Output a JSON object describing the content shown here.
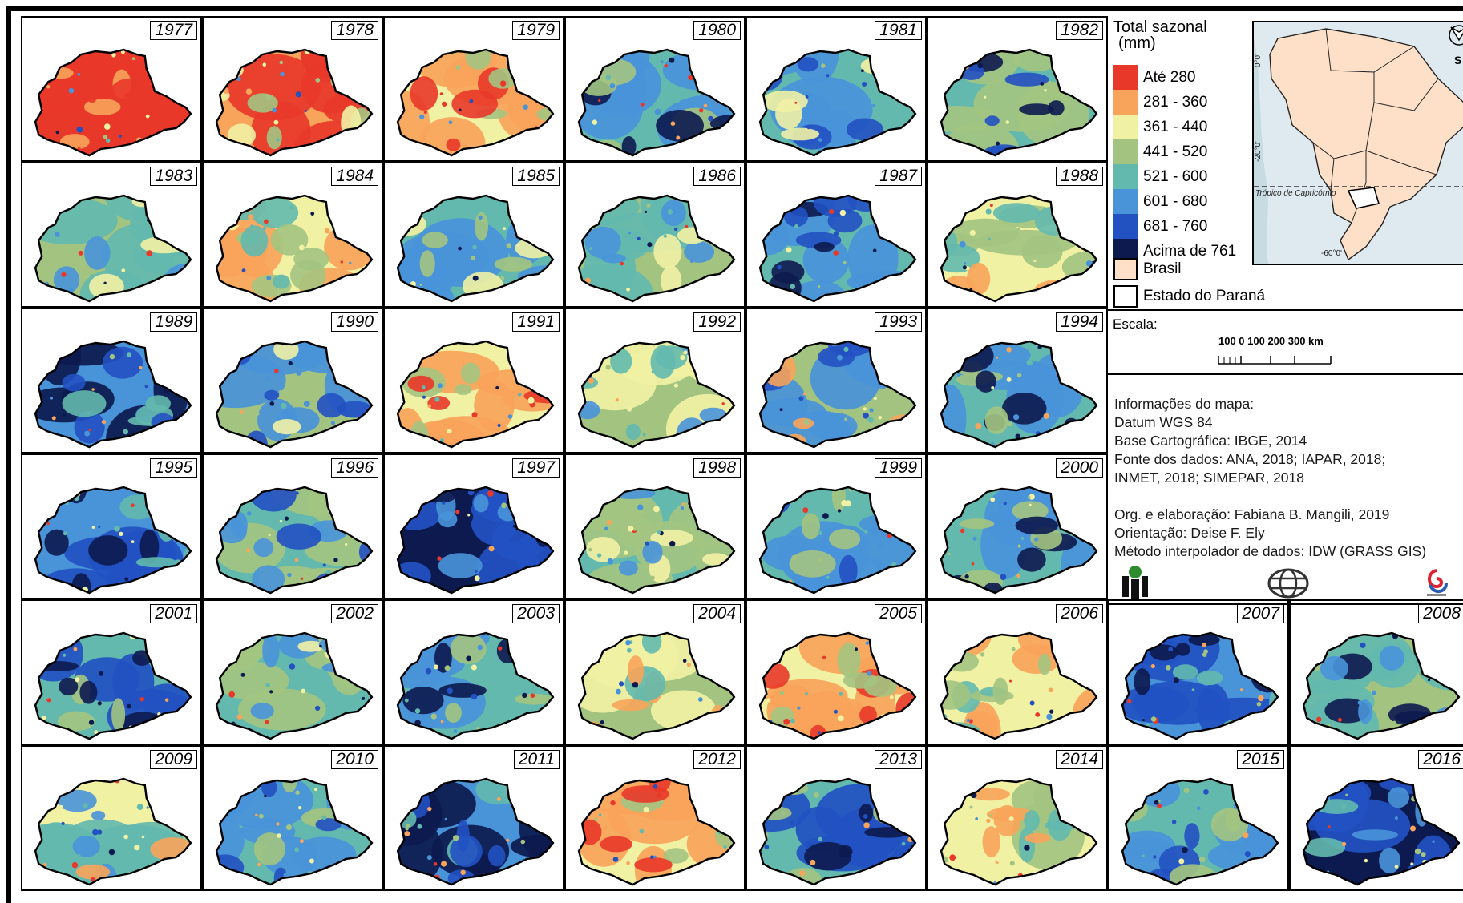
{
  "years": [
    "1977",
    "1978",
    "1979",
    "1980",
    "1981",
    "1982",
    "1983",
    "1984",
    "1985",
    "1986",
    "1987",
    "1988",
    "1989",
    "1990",
    "1991",
    "1992",
    "1993",
    "1994",
    "1995",
    "1996",
    "1997",
    "1998",
    "1999",
    "2000",
    "2001",
    "2002",
    "2003",
    "2004",
    "2005",
    "2006",
    "2007",
    "2008",
    "2009",
    "2010",
    "2011",
    "2012",
    "2013",
    "2014",
    "2015",
    "2016"
  ],
  "maps": [
    {
      "year": "1977",
      "levels": {
        "base": 0,
        "mid": 0,
        "spots": [
          1,
          0
        ]
      }
    },
    {
      "year": "1978",
      "levels": {
        "base": 1,
        "mid": 0,
        "spots": [
          2,
          3
        ]
      }
    },
    {
      "year": "1979",
      "levels": {
        "base": 2,
        "mid": 1,
        "spots": [
          0,
          3
        ]
      }
    },
    {
      "year": "1980",
      "levels": {
        "base": 4,
        "mid": 5,
        "spots": [
          3,
          7
        ]
      }
    },
    {
      "year": "1981",
      "levels": {
        "base": 4,
        "mid": 5,
        "spots": [
          2,
          6
        ]
      }
    },
    {
      "year": "1982",
      "levels": {
        "base": 4,
        "mid": 3,
        "spots": [
          6,
          7
        ]
      }
    },
    {
      "year": "1983",
      "levels": {
        "base": 3,
        "mid": 4,
        "spots": [
          5,
          2
        ]
      }
    },
    {
      "year": "1984",
      "levels": {
        "base": 2,
        "mid": 1,
        "spots": [
          3,
          4
        ]
      }
    },
    {
      "year": "1985",
      "levels": {
        "base": 4,
        "mid": 5,
        "spots": [
          3,
          2
        ]
      }
    },
    {
      "year": "1986",
      "levels": {
        "base": 3,
        "mid": 4,
        "spots": [
          5,
          2
        ]
      }
    },
    {
      "year": "1987",
      "levels": {
        "base": 4,
        "mid": 5,
        "spots": [
          6,
          7
        ]
      }
    },
    {
      "year": "1988",
      "levels": {
        "base": 2,
        "mid": 3,
        "spots": [
          1,
          4
        ]
      }
    },
    {
      "year": "1989",
      "levels": {
        "base": 5,
        "mid": 7,
        "spots": [
          6,
          4
        ]
      }
    },
    {
      "year": "1990",
      "levels": {
        "base": 3,
        "mid": 5,
        "spots": [
          6,
          2
        ]
      }
    },
    {
      "year": "1991",
      "levels": {
        "base": 2,
        "mid": 1,
        "spots": [
          0,
          3
        ]
      }
    },
    {
      "year": "1992",
      "levels": {
        "base": 3,
        "mid": 2,
        "spots": [
          4,
          5
        ]
      }
    },
    {
      "year": "1993",
      "levels": {
        "base": 3,
        "mid": 5,
        "spots": [
          1,
          6
        ]
      }
    },
    {
      "year": "1994",
      "levels": {
        "base": 4,
        "mid": 5,
        "spots": [
          7,
          3
        ]
      }
    },
    {
      "year": "1995",
      "levels": {
        "base": 5,
        "mid": 6,
        "spots": [
          7,
          4
        ]
      }
    },
    {
      "year": "1996",
      "levels": {
        "base": 4,
        "mid": 3,
        "spots": [
          5,
          6
        ]
      }
    },
    {
      "year": "1997",
      "levels": {
        "base": 7,
        "mid": 6,
        "spots": [
          5,
          7
        ]
      }
    },
    {
      "year": "1998",
      "levels": {
        "base": 4,
        "mid": 3,
        "spots": [
          5,
          2
        ]
      }
    },
    {
      "year": "1999",
      "levels": {
        "base": 4,
        "mid": 5,
        "spots": [
          3,
          6
        ]
      }
    },
    {
      "year": "2000",
      "levels": {
        "base": 4,
        "mid": 5,
        "spots": [
          7,
          3
        ]
      }
    },
    {
      "year": "2001",
      "levels": {
        "base": 4,
        "mid": 6,
        "spots": [
          7,
          3
        ]
      }
    },
    {
      "year": "2002",
      "levels": {
        "base": 4,
        "mid": 3,
        "spots": [
          5,
          2
        ]
      }
    },
    {
      "year": "2003",
      "levels": {
        "base": 4,
        "mid": 5,
        "spots": [
          3,
          7
        ]
      }
    },
    {
      "year": "2004",
      "levels": {
        "base": 3,
        "mid": 2,
        "spots": [
          1,
          4
        ]
      }
    },
    {
      "year": "2005",
      "levels": {
        "base": 2,
        "mid": 1,
        "spots": [
          0,
          3
        ]
      }
    },
    {
      "year": "2006",
      "levels": {
        "base": 2,
        "mid": 1,
        "spots": [
          3,
          4
        ]
      }
    },
    {
      "year": "2007",
      "levels": {
        "base": 5,
        "mid": 6,
        "spots": [
          7,
          4
        ]
      }
    },
    {
      "year": "2008",
      "levels": {
        "base": 3,
        "mid": 4,
        "spots": [
          5,
          7
        ]
      }
    },
    {
      "year": "2009",
      "levels": {
        "base": 2,
        "mid": 4,
        "spots": [
          5,
          1
        ]
      }
    },
    {
      "year": "2010",
      "levels": {
        "base": 4,
        "mid": 5,
        "spots": [
          6,
          3
        ]
      }
    },
    {
      "year": "2011",
      "levels": {
        "base": 5,
        "mid": 7,
        "spots": [
          6,
          4
        ]
      }
    },
    {
      "year": "2012",
      "levels": {
        "base": 2,
        "mid": 1,
        "spots": [
          0,
          3
        ]
      }
    },
    {
      "year": "2013",
      "levels": {
        "base": 4,
        "mid": 6,
        "spots": [
          7,
          3
        ]
      }
    },
    {
      "year": "2014",
      "levels": {
        "base": 2,
        "mid": 3,
        "spots": [
          1,
          4
        ]
      }
    },
    {
      "year": "2015",
      "levels": {
        "base": 4,
        "mid": 5,
        "spots": [
          3,
          6
        ]
      }
    },
    {
      "year": "2016",
      "levels": {
        "base": 7,
        "mid": 6,
        "spots": [
          5,
          4
        ]
      }
    }
  ],
  "legend": {
    "title_line1": "Total sazonal",
    "title_line2": "(mm)",
    "classes": [
      {
        "label": "Até 280",
        "color": "#e8382a"
      },
      {
        "label": "281 - 360",
        "color": "#f8a45a"
      },
      {
        "label": "361 - 440",
        "color": "#f1f1a4"
      },
      {
        "label": "441 - 520",
        "color": "#a3c481"
      },
      {
        "label": "521 - 600",
        "color": "#63b9ae"
      },
      {
        "label": "601 - 680",
        "color": "#4993d9"
      },
      {
        "label": "681 - 760",
        "color": "#2251c2"
      },
      {
        "label": "Acima de 761",
        "color": "#0d1a4f"
      }
    ],
    "brasil_label": "Brasil",
    "brasil_color": "#fde0c7",
    "parana_label": "Estado do Paraná"
  },
  "inset": {
    "lat0": "0°0'",
    "lat20": "-20°0'",
    "lon60": "-60°0'",
    "tropic": "Trópico de Capricórnio",
    "north": "S"
  },
  "scale": {
    "title": "Escala:",
    "numbers": "100    0    100  200  300 km"
  },
  "info": [
    "Informações do mapa:",
    "Datum WGS 84",
    "Base Cartográfica: IBGE, 2014",
    "Fonte dos dados: ANA, 2018; IAPAR, 2018;",
    "INMET, 2018; SIMEPAR, 2018",
    "",
    "Org. e elaboração: Fabiana B. Mangili, 2019",
    "Orientação: Deise F. Ely",
    "Método interpolador de dados: IDW (GRASS GIS)"
  ]
}
